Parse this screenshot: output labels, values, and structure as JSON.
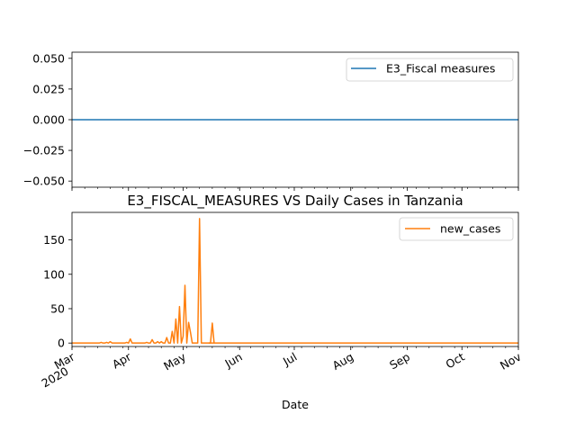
{
  "chart_data": [
    {
      "type": "line",
      "title": "",
      "xlabel": "",
      "ylabel": "",
      "ylim": [
        -0.055,
        0.055
      ],
      "yticks": [
        0.05,
        0.025,
        0.0,
        -0.025,
        -0.05
      ],
      "ytick_labels": [
        "0.050",
        "0.025",
        "0.000",
        "−0.025",
        "−0.050"
      ],
      "legend_position": "upper right",
      "grid": false,
      "series": [
        {
          "name": "E3_Fiscal measures",
          "color": "#1f77b4",
          "x": [
            "2020-03-01",
            "2020-11-01"
          ],
          "y": [
            0,
            0
          ]
        }
      ]
    },
    {
      "type": "line",
      "title": "E3_FISCAL_MEASURES VS Daily Cases in Tanzania",
      "xlabel": "Date",
      "ylabel": "",
      "ylim": [
        -5,
        190
      ],
      "yticks": [
        0,
        50,
        100,
        150
      ],
      "ytick_labels": [
        "0",
        "50",
        "100",
        "150"
      ],
      "xlim": [
        "2020-03-01",
        "2020-11-01"
      ],
      "xticks": [
        {
          "date": "2020-03-01",
          "label": "Mar",
          "sublabel": "2020"
        },
        {
          "date": "2020-04-01",
          "label": "Apr"
        },
        {
          "date": "2020-05-01",
          "label": "May"
        },
        {
          "date": "2020-06-01",
          "label": "Jun"
        },
        {
          "date": "2020-07-01",
          "label": "Jul"
        },
        {
          "date": "2020-08-01",
          "label": "Aug"
        },
        {
          "date": "2020-09-01",
          "label": "Sep"
        },
        {
          "date": "2020-10-01",
          "label": "Oct"
        },
        {
          "date": "2020-11-01",
          "label": "Nov"
        }
      ],
      "legend_position": "upper right",
      "grid": false,
      "series": [
        {
          "name": "new_cases",
          "color": "#ff7f0e",
          "x": [
            "2020-03-01",
            "2020-03-16",
            "2020-03-17",
            "2020-03-18",
            "2020-03-19",
            "2020-03-20",
            "2020-03-21",
            "2020-03-22",
            "2020-03-23",
            "2020-03-24",
            "2020-03-25",
            "2020-03-26",
            "2020-03-27",
            "2020-03-28",
            "2020-03-29",
            "2020-03-30",
            "2020-03-31",
            "2020-04-01",
            "2020-04-02",
            "2020-04-03",
            "2020-04-04",
            "2020-04-05",
            "2020-04-06",
            "2020-04-07",
            "2020-04-08",
            "2020-04-09",
            "2020-04-10",
            "2020-04-11",
            "2020-04-12",
            "2020-04-13",
            "2020-04-14",
            "2020-04-15",
            "2020-04-16",
            "2020-04-17",
            "2020-04-18",
            "2020-04-19",
            "2020-04-20",
            "2020-04-21",
            "2020-04-22",
            "2020-04-23",
            "2020-04-24",
            "2020-04-25",
            "2020-04-26",
            "2020-04-27",
            "2020-04-28",
            "2020-04-29",
            "2020-04-30",
            "2020-05-01",
            "2020-05-02",
            "2020-05-03",
            "2020-05-04",
            "2020-05-05",
            "2020-05-06",
            "2020-05-07",
            "2020-05-08",
            "2020-05-09",
            "2020-05-10",
            "2020-05-11",
            "2020-05-12",
            "2020-11-01"
          ],
          "y": [
            0,
            0,
            1,
            0,
            0,
            1,
            0,
            2,
            0,
            0,
            0,
            0,
            0,
            0,
            0,
            0,
            1,
            0,
            6,
            0,
            0,
            0,
            0,
            0,
            0,
            0,
            0,
            1,
            0,
            0,
            5,
            0,
            0,
            2,
            0,
            2,
            0,
            0,
            8,
            0,
            0,
            17,
            0,
            35,
            0,
            53,
            0,
            10,
            84,
            0,
            30,
            16,
            0,
            0,
            0,
            0,
            181,
            0,
            0,
            0
          ]
        },
        {
          "name": "new_cases",
          "color": "#ff7f0e",
          "x": [
            "2020-05-15",
            "2020-05-16",
            "2020-05-17",
            "2020-05-18"
          ],
          "y": [
            0,
            0,
            29,
            0
          ]
        }
      ]
    }
  ]
}
